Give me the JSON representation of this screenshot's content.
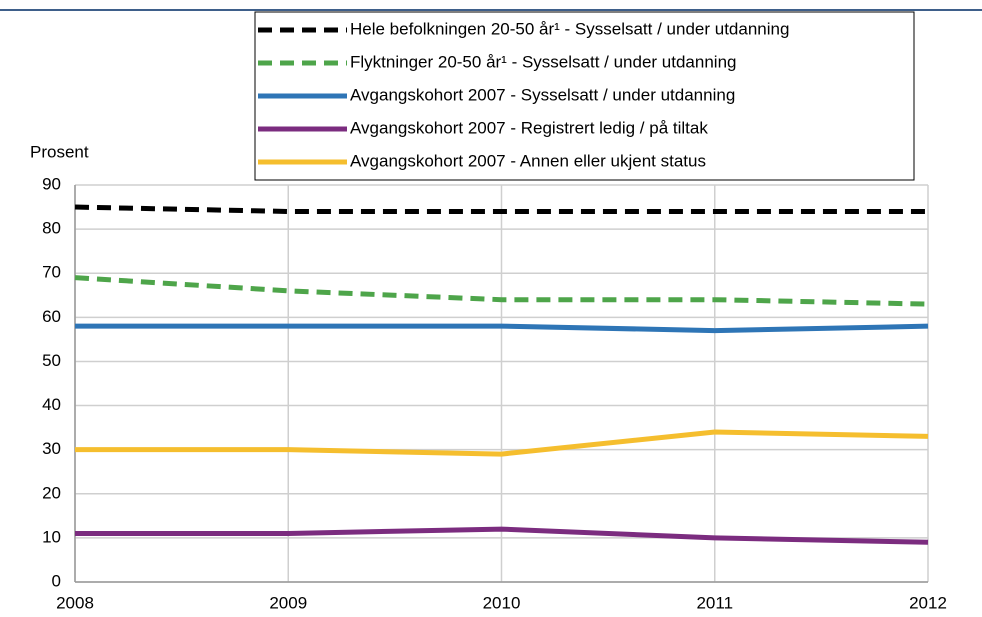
{
  "chart_data": {
    "type": "line",
    "y_label": "Prosent",
    "x": [
      2008,
      2009,
      2010,
      2011,
      2012
    ],
    "xlim": [
      2008,
      2012
    ],
    "xticks": [
      2008,
      2009,
      2010,
      2011,
      2012
    ],
    "ylim": [
      0,
      90
    ],
    "yticks": [
      0,
      10,
      20,
      30,
      40,
      50,
      60,
      70,
      80,
      90
    ],
    "grid": true,
    "legend": "top",
    "series": [
      {
        "name": "Hele befolkningen 20-50 år¹ - Sysselsatt / under utdanning",
        "color": "#000000",
        "dashed": true,
        "values": [
          85,
          84,
          84,
          84,
          84
        ]
      },
      {
        "name": "Flyktninger 20-50 år¹ - Sysselsatt / under utdanning",
        "color": "#4ea54a",
        "dashed": true,
        "values": [
          69,
          66,
          64,
          64,
          63
        ]
      },
      {
        "name": "Avgangskohort 2007  - Sysselsatt / under utdanning",
        "color": "#2e75b6",
        "dashed": false,
        "values": [
          58,
          58,
          58,
          57,
          58
        ]
      },
      {
        "name": "Avgangskohort 2007 - Registrert ledig / på tiltak",
        "color": "#7b2c7f",
        "dashed": false,
        "values": [
          11,
          11,
          12,
          10,
          9
        ]
      },
      {
        "name": "Avgangskohort 2007 - Annen eller ukjent status",
        "color": "#f5be2e",
        "dashed": false,
        "values": [
          30,
          30,
          29,
          34,
          33
        ]
      }
    ]
  }
}
